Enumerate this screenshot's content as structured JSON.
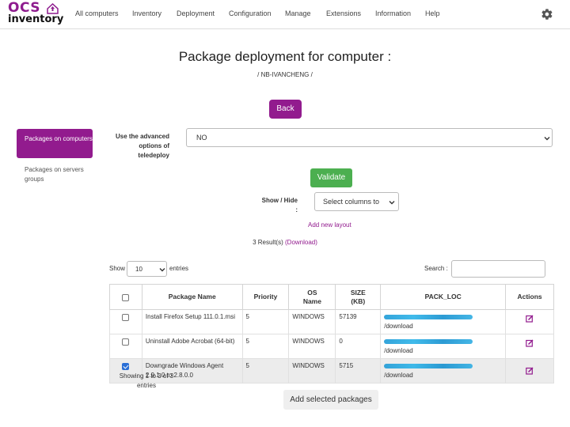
{
  "brand": {
    "line1": "ocs",
    "line2": "inventory"
  },
  "nav": {
    "items": [
      "All computers",
      "Inventory",
      "Deployment",
      "Configuration",
      "Manage",
      "Extensions",
      "Information",
      "Help"
    ],
    "settings_icon": "gear-icon"
  },
  "page": {
    "title": "Package deployment for computer :",
    "subtitle": "/ NB-IVANCHENG /",
    "back_label": "Back"
  },
  "sidebar": {
    "items": [
      {
        "label": "Packages on computers",
        "active": true
      },
      {
        "label": "Packages on servers groups",
        "active": false
      }
    ]
  },
  "form": {
    "advanced_label": "Use the advanced options of teledeploy",
    "advanced_value": "NO",
    "validate_label": "Validate",
    "show_hide_label": "Show / Hide :",
    "columns_placeholder": "Select columns to",
    "add_layout_label": "Add new layout"
  },
  "results": {
    "count_text": "3 Result(s)",
    "download_label": "(Download)"
  },
  "table_controls": {
    "show_label": "Show",
    "length_value": "10",
    "entries_label": "entries",
    "search_label": "Search :",
    "search_value": ""
  },
  "table": {
    "columns": [
      "Package Name",
      "Priority",
      "OS Name",
      "SIZE (KB)",
      "PACK_LOC",
      "Actions"
    ],
    "rows": [
      {
        "checked": false,
        "name": "Install Firefox Setup 111.0.1.msi",
        "priority": "5",
        "os": "WINDOWS",
        "size": "57139",
        "pack_loc": "/download"
      },
      {
        "checked": false,
        "name": "Uninstall Adobe Acrobat (64-bit)",
        "priority": "5",
        "os": "WINDOWS",
        "size": "0",
        "pack_loc": "/download"
      },
      {
        "checked": true,
        "name": "Downgrade Windows Agent 2.9.1.0 to 2.8.0.0",
        "priority": "5",
        "os": "WINDOWS",
        "size": "5715",
        "pack_loc": "/download"
      }
    ]
  },
  "footer": {
    "showing_text": "Showing 1 to 3 of 3 entries",
    "add_selected_label": "Add selected packages"
  },
  "colors": {
    "accent": "#921b8e",
    "validate": "#4caf50",
    "checkbox": "#2a6fd6"
  }
}
